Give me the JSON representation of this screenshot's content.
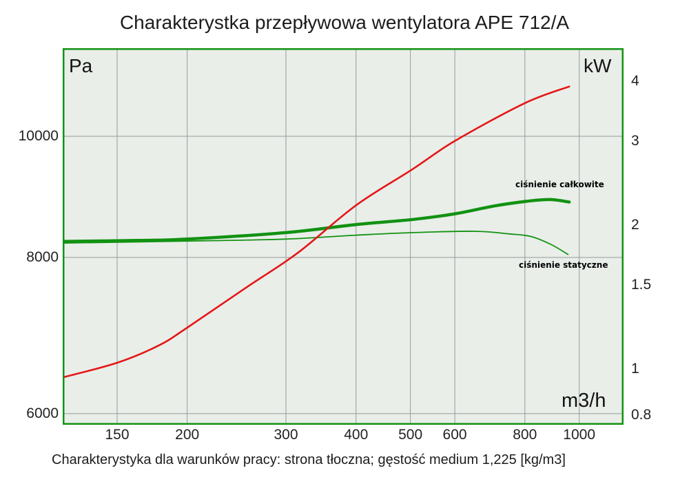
{
  "title": "Charakterystka przepływowa wentylatora APE 712/A",
  "caption": "Charakterystyka dla warunków pracy: strona tłoczna; gęstość medium 1,225 [kg/m3]",
  "colors": {
    "plot_background": "#e9eee9",
    "plot_border": "#129212",
    "grid": "#939b9b",
    "green_curve": "#129212",
    "red_curve": "#e51616"
  },
  "chart_data": {
    "type": "line",
    "title": "Charakterystka przepływowa wentylatora APE 712/A",
    "grid": true,
    "x_axis": {
      "unit": "m3/h",
      "scale": "log",
      "ticks": [
        "150",
        "200",
        "300",
        "400",
        "500",
        "600",
        "800",
        "1000"
      ],
      "range": [
        120,
        1190
      ]
    },
    "y_left_axis": {
      "unit": "Pa",
      "scale": "log",
      "ticks": [
        "6000",
        "8000",
        "10000"
      ],
      "range": [
        5900,
        11730
      ]
    },
    "y_right_axis": {
      "unit": "kW",
      "scale": "log",
      "ticks": [
        "0.8",
        "1",
        "1.5",
        "2",
        "3",
        "4"
      ],
      "range": [
        0.79,
        4.7
      ]
    },
    "series": [
      {
        "id": "total-pressure",
        "label": "ciśnienie całkowite",
        "axis": "left",
        "color": "#129212",
        "width": 4.5,
        "points": [
          [
            120,
            8240
          ],
          [
            163,
            8255
          ],
          [
            200,
            8275
          ],
          [
            300,
            8375
          ],
          [
            400,
            8500
          ],
          [
            505,
            8580
          ],
          [
            600,
            8670
          ],
          [
            710,
            8800
          ],
          [
            820,
            8880
          ],
          [
            890,
            8900
          ],
          [
            960,
            8860
          ]
        ]
      },
      {
        "id": "static-pressure",
        "label": "ciśnienie statyczne",
        "axis": "left",
        "color": "#129212",
        "width": 1.8,
        "points": [
          [
            120,
            8215
          ],
          [
            200,
            8245
          ],
          [
            300,
            8275
          ],
          [
            400,
            8335
          ],
          [
            505,
            8375
          ],
          [
            650,
            8395
          ],
          [
            750,
            8355
          ],
          [
            820,
            8315
          ],
          [
            890,
            8195
          ],
          [
            955,
            8045
          ]
        ]
      },
      {
        "id": "power",
        "label": "",
        "axis": "right",
        "color": "#e51616",
        "width": 2.6,
        "points": [
          [
            120,
            0.96
          ],
          [
            150,
            1.03
          ],
          [
            178,
            1.12
          ],
          [
            200,
            1.22
          ],
          [
            257,
            1.49
          ],
          [
            315,
            1.75
          ],
          [
            400,
            2.2
          ],
          [
            505,
            2.62
          ],
          [
            600,
            3.0
          ],
          [
            800,
            3.6
          ],
          [
            960,
            3.9
          ]
        ]
      }
    ]
  }
}
